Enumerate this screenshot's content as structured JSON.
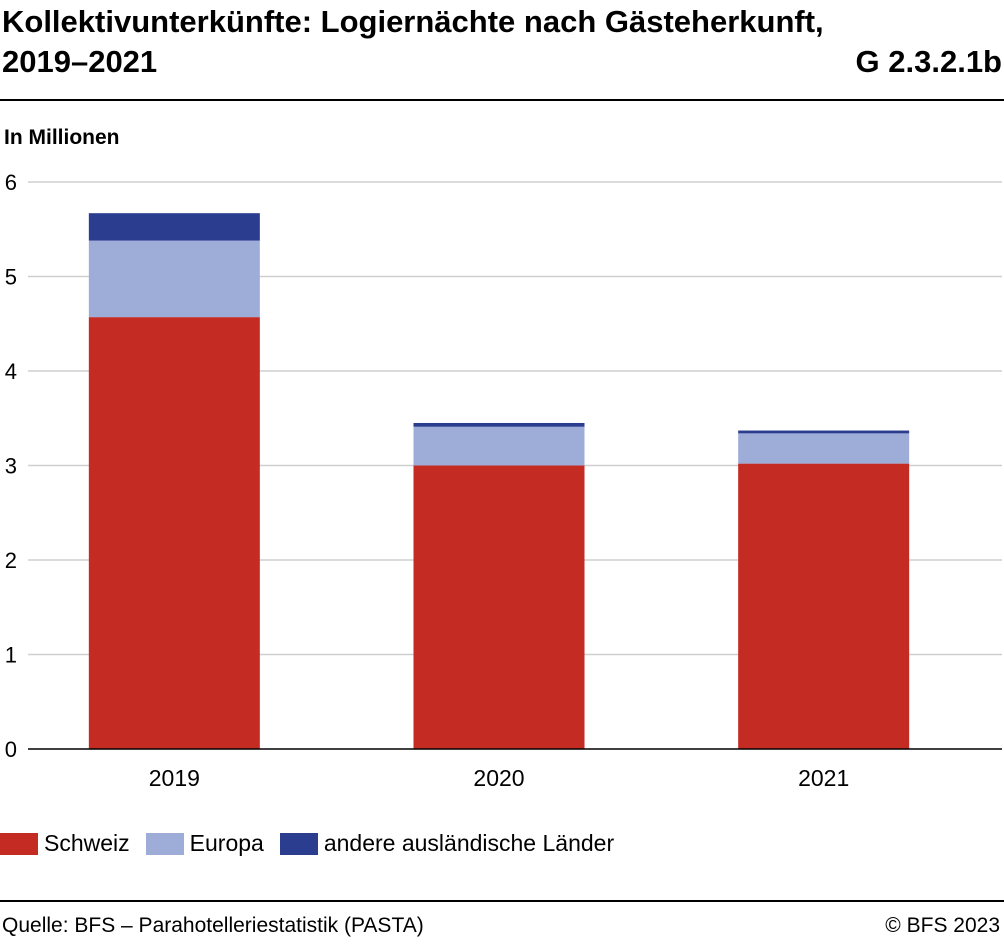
{
  "header": {
    "title_line1": "Kollektivunterkünfte: Logiernächte nach Gästeherkunft,",
    "title_line2": "2019–2021",
    "graphic_id": "G 2.3.2.1b"
  },
  "footer": {
    "source": "Quelle: BFS – Parahotelleriestatistik (PASTA)",
    "copyright": "© BFS 2023"
  },
  "chart_data": {
    "type": "bar",
    "stacked": true,
    "ylabel": "In Millionen",
    "ylim": [
      0,
      6
    ],
    "yticks": [
      0,
      1,
      2,
      3,
      4,
      5,
      6
    ],
    "grid": true,
    "legend_position": "bottom",
    "categories": [
      "2019",
      "2020",
      "2021"
    ],
    "series": [
      {
        "name": "Schweiz",
        "color": "#c42b22",
        "values": [
          4.57,
          3.0,
          3.02
        ]
      },
      {
        "name": "Europa",
        "color": "#9eadd8",
        "values": [
          0.81,
          0.41,
          0.32
        ]
      },
      {
        "name": "andere ausländische Länder",
        "color": "#2a3d8f",
        "values": [
          0.29,
          0.04,
          0.03
        ]
      }
    ]
  }
}
